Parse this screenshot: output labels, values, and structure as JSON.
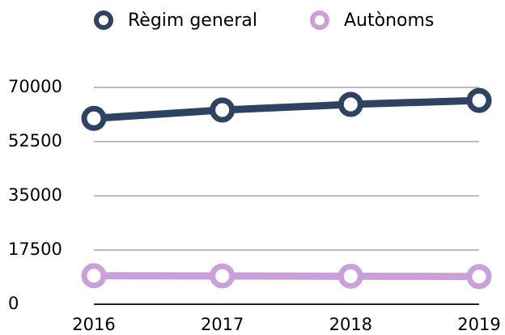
{
  "chart_data": {
    "type": "line",
    "categories": [
      "2016",
      "2017",
      "2018",
      "2019"
    ],
    "series": [
      {
        "name": "Règim general",
        "color": "#2e4361",
        "values": [
          60000,
          62700,
          64500,
          65800
        ]
      },
      {
        "name": "Autònoms",
        "color": "#c9a0d8",
        "values": [
          9200,
          9150,
          9050,
          8950
        ]
      }
    ],
    "ylim": [
      0,
      70000
    ],
    "yticks": [
      0,
      17500,
      35000,
      52500,
      70000
    ],
    "grid": true,
    "legend": "top"
  }
}
